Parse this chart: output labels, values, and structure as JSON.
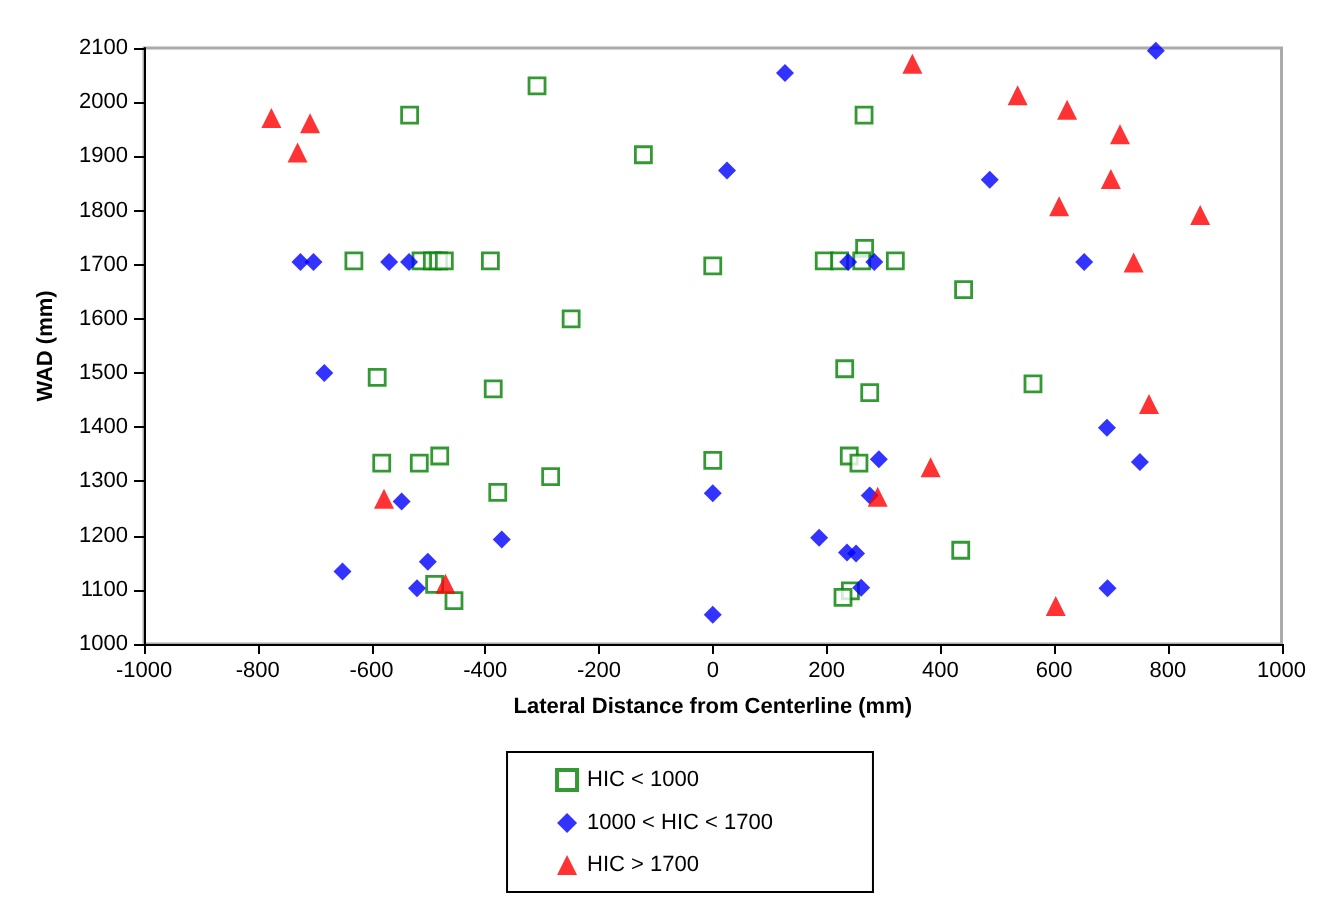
{
  "chart_data": {
    "type": "scatter",
    "xlabel": "Lateral Distance from Centerline (mm)",
    "ylabel": "WAD (mm)",
    "xlim": [
      -1000,
      1000
    ],
    "xticks": [
      -1000,
      -800,
      -600,
      -400,
      -200,
      0,
      200,
      400,
      600,
      800,
      1000
    ],
    "ylim": [
      1000,
      2100
    ],
    "yticks": [
      1000,
      1100,
      1200,
      1300,
      1400,
      1500,
      1600,
      1700,
      1800,
      1900,
      2000,
      2100
    ],
    "grid": false,
    "legend": "bottom",
    "series": [
      {
        "name": "HIC < 1000",
        "color": "#008000",
        "marker": "square",
        "x": [
          -533,
          -309,
          -122,
          -631,
          -513,
          -493,
          -482,
          -472,
          -391,
          -249,
          0,
          266,
          196,
          223,
          267,
          262,
          321,
          441,
          -590,
          -386,
          -582,
          -516,
          -480,
          -285,
          -378,
          -489,
          -455,
          0,
          232,
          276,
          563,
          240,
          257,
          436,
          242,
          229
        ],
        "values": [
          1976,
          2030,
          1903,
          1707,
          1707,
          1707,
          1707,
          1707,
          1707,
          1600,
          1698,
          1976,
          1707,
          1707,
          1730,
          1707,
          1707,
          1654,
          1492,
          1471,
          1334,
          1334,
          1347,
          1309,
          1280,
          1110,
          1080,
          1339,
          1508,
          1464,
          1480,
          1347,
          1334,
          1173,
          1098,
          1086
        ]
      },
      {
        "name": "1000 < HIC < 1700",
        "color": "#0000ff",
        "marker": "diamond",
        "x": [
          -725,
          -702,
          -569,
          -534,
          127,
          779,
          25,
          487,
          238,
          284,
          653,
          -683,
          -547,
          -371,
          -501,
          -651,
          -520,
          0,
          0,
          693,
          751,
          292,
          276,
          187,
          236,
          252,
          261,
          694
        ],
        "values": [
          1705,
          1705,
          1705,
          1705,
          2054,
          2095,
          1874,
          1857,
          1705,
          1705,
          1705,
          1500,
          1263,
          1193,
          1152,
          1134,
          1103,
          1278,
          1054,
          1399,
          1336,
          1341,
          1274,
          1196,
          1169,
          1167,
          1104,
          1103
        ]
      },
      {
        "name": "HIC > 1700",
        "color": "#ff0000",
        "marker": "triangle",
        "x": [
          -776,
          -708,
          -730,
          351,
          536,
          623,
          716,
          700,
          609,
          857,
          740,
          -578,
          -470,
          767,
          383,
          290,
          603
        ],
        "values": [
          1971,
          1961,
          1907,
          2071,
          2013,
          1986,
          1941,
          1858,
          1808,
          1792,
          1704,
          1268,
          1111,
          1443,
          1326,
          1272,
          1070
        ]
      }
    ]
  }
}
